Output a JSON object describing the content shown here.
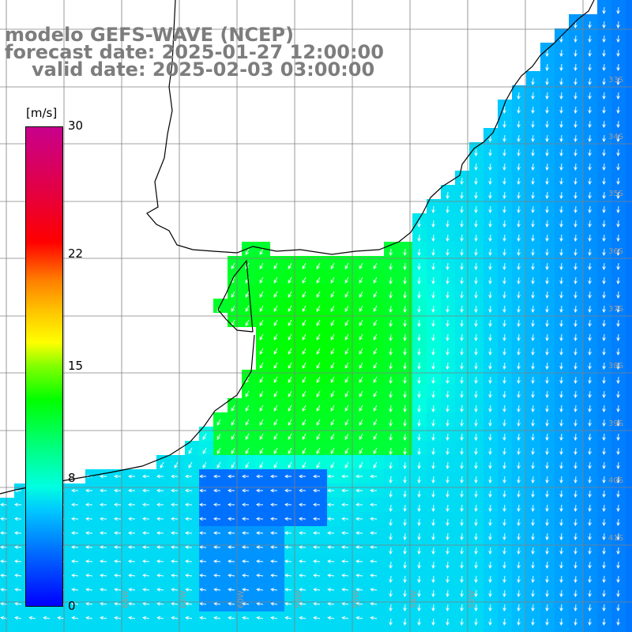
{
  "title": {
    "line1": "modelo GEFS-WAVE (NCEP)",
    "line2": "forecast date: 2025-01-27 12:00:00",
    "line3": "valid date: 2025-02-03 03:00:00"
  },
  "colorbar": {
    "unit": "[m/s]",
    "min": 0,
    "max": 30,
    "ticks": [
      "30",
      "22",
      "15",
      "8",
      "0"
    ],
    "tick_values": [
      30,
      22,
      15,
      8,
      0
    ]
  },
  "grid_labels": {
    "latitudes": [
      "33S",
      "34S",
      "35S",
      "36S",
      "37S",
      "38S",
      "39S",
      "40S",
      "41S"
    ],
    "longitudes": [
      "64W",
      "62W",
      "60W",
      "58W",
      "56W",
      "54W",
      "52W"
    ]
  },
  "colors": {
    "land": "#ffffff",
    "arrows": "#ffffff",
    "gridlines": "#808080",
    "coastline": "#000000",
    "title": "#7d7d7d"
  }
}
